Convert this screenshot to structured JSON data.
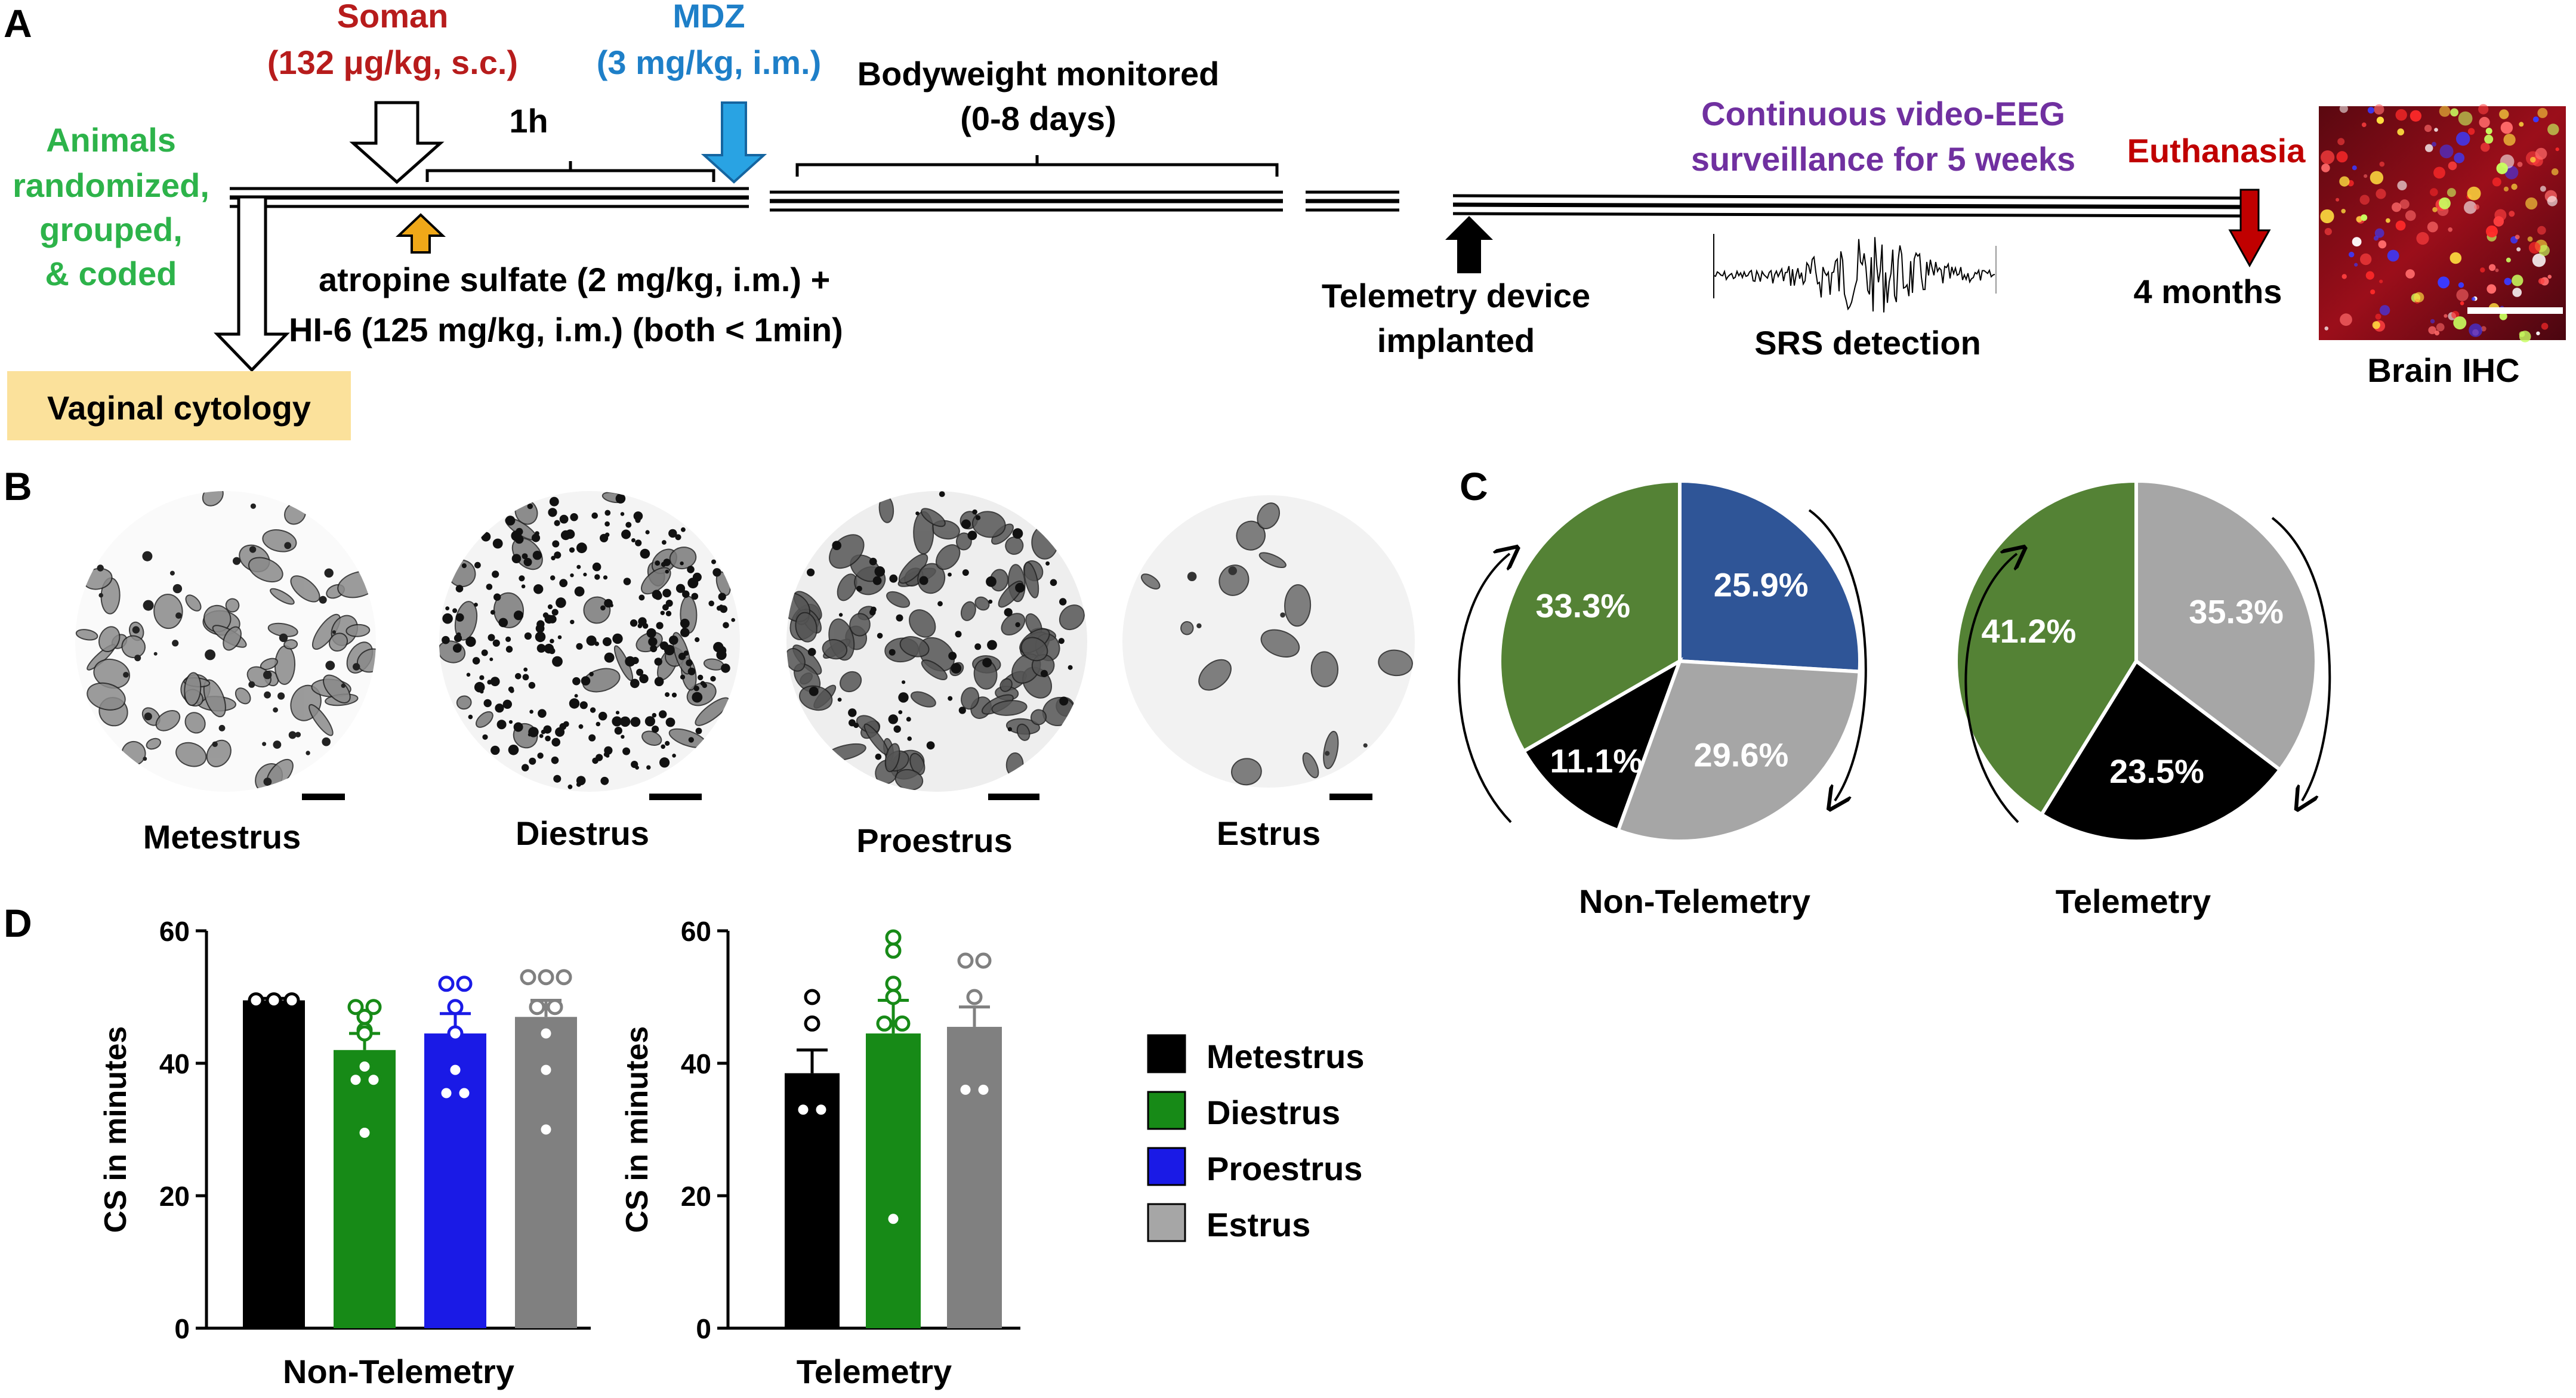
{
  "colors": {
    "soman": "#b71c1c",
    "mdz": "#1e7fc8",
    "animals": "#2db34a",
    "purple": "#7030a0",
    "euthanasia": "#c00000",
    "highlight_box": "#fbe19b",
    "atropine_arrow": "#f0a818",
    "mdz_arrow": "#29a3e3",
    "metestrus": "#000000",
    "diestrus_bar": "#178a17",
    "proestrus_bar": "#1a1ae6",
    "estrus_bar": "#808080",
    "pie_green": "#548235",
    "pie_blue": "#2f5597",
    "pie_gray": "#a6a6a6",
    "pie_black": "#000000"
  },
  "panelA": {
    "label": "A",
    "soman_line1": "Soman",
    "soman_line2": "(132 μg/kg, s.c.)",
    "mdz_line1": "MDZ",
    "mdz_line2": "(3 mg/kg, i.m.)",
    "bodyweight_line1": "Bodyweight monitored",
    "bodyweight_line2": "(0-8 days)",
    "interval": "1h",
    "animals_lines": [
      "Animals",
      "randomized,",
      "grouped,",
      "& coded"
    ],
    "atropine_line1": "atropine sulfate (2 mg/kg, i.m.) +",
    "atropine_line2": "HI-6 (125 mg/kg, i.m.) (both < 1min)",
    "vaginal": "Vaginal cytology",
    "telemetry_line1": "Telemetry device",
    "telemetry_line2": "implanted",
    "eeg_line1": "Continuous video-EEG",
    "eeg_line2": "surveillance for 5 weeks",
    "srs": "SRS detection",
    "euthanasia": "Euthanasia",
    "four_months": "4 months",
    "brain": "Brain IHC"
  },
  "panelB": {
    "label": "B",
    "stages": [
      "Metestrus",
      "Diestrus",
      "Proestrus",
      "Estrus"
    ]
  },
  "panelC": {
    "label": "C",
    "pies": [
      {
        "title": "Non-Telemetry",
        "slices": [
          {
            "stage": "Proestrus",
            "value": 25.9,
            "label": "25.9%",
            "color": "#2f5597"
          },
          {
            "stage": "Estrus",
            "value": 29.6,
            "label": "29.6%",
            "color": "#a6a6a6"
          },
          {
            "stage": "Metestrus",
            "value": 11.1,
            "label": "11.1%",
            "color": "#000000"
          },
          {
            "stage": "Diestrus",
            "value": 33.3,
            "label": "33.3%",
            "color": "#548235"
          }
        ]
      },
      {
        "title": "Telemetry",
        "slices": [
          {
            "stage": "Estrus",
            "value": 35.3,
            "label": "35.3%",
            "color": "#a6a6a6"
          },
          {
            "stage": "Metestrus",
            "value": 23.5,
            "label": "23.5%",
            "color": "#000000"
          },
          {
            "stage": "Diestrus",
            "value": 41.2,
            "label": "41.2%",
            "color": "#548235"
          }
        ]
      }
    ]
  },
  "panelD": {
    "label": "D",
    "legend": [
      {
        "name": "Metestrus",
        "color": "#000000"
      },
      {
        "name": "Diestrus",
        "color": "#178a17"
      },
      {
        "name": "Proestrus",
        "color": "#1a1ae6"
      },
      {
        "name": "Estrus",
        "color": "#a6a6a6"
      }
    ]
  },
  "chart_data": [
    {
      "type": "bar",
      "title": "Non-Telemetry",
      "xlabel": "Non-Telemetry",
      "ylabel": "CS in minutes",
      "ylim": [
        0,
        60
      ],
      "yticks": [
        0,
        20,
        40,
        60
      ],
      "categories": [
        "Metestrus",
        "Diestrus",
        "Proestrus",
        "Estrus"
      ],
      "values": [
        49.5,
        42,
        44.5,
        47
      ],
      "errors": [
        0.3,
        2.5,
        3,
        2.5
      ],
      "colors": [
        "#000000",
        "#178a17",
        "#1a1ae6",
        "#808080"
      ],
      "points": [
        [
          49.5,
          49.5,
          49.5
        ],
        [
          48.5,
          48.5,
          47,
          45,
          44.5,
          39.5,
          37.5,
          37.5,
          29.5
        ],
        [
          52,
          52,
          48.5,
          44.5,
          39,
          35.5,
          35.5
        ],
        [
          53,
          53,
          53,
          48.5,
          48.5,
          44.5,
          39,
          30
        ]
      ]
    },
    {
      "type": "bar",
      "title": "Telemetry",
      "xlabel": "Telemetry",
      "ylabel": "CS in minutes",
      "ylim": [
        0,
        60
      ],
      "yticks": [
        0,
        20,
        40,
        60
      ],
      "categories": [
        "Metestrus",
        "Diestrus",
        "Proestrus",
        "Estrus"
      ],
      "values": [
        38.5,
        44.5,
        null,
        45.5
      ],
      "errors": [
        3.5,
        5,
        null,
        3
      ],
      "colors": [
        "#000000",
        "#178a17",
        "#1a1ae6",
        "#808080"
      ],
      "points": [
        [
          50,
          46,
          33,
          33
        ],
        [
          59,
          57,
          52,
          50,
          46,
          46,
          16.5
        ],
        [],
        [
          55.5,
          55.5,
          50,
          36,
          36
        ]
      ]
    }
  ]
}
